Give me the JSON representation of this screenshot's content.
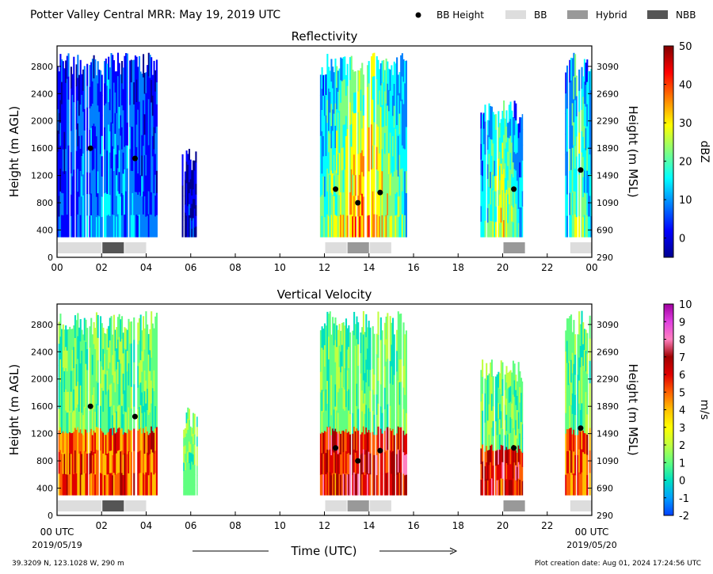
{
  "header": {
    "title": "Potter Valley Central MRR:  May 19, 2019 UTC",
    "legend": [
      {
        "label": "BB Height",
        "kind": "dot",
        "color": "#000000"
      },
      {
        "label": "BB",
        "kind": "box",
        "color": "#dddddd"
      },
      {
        "label": "Hybrid",
        "kind": "box",
        "color": "#999999"
      },
      {
        "label": "NBB",
        "kind": "box",
        "color": "#555555"
      }
    ]
  },
  "footer": {
    "location": "39.3209 N, 123.1028 W, 290 m",
    "creation": "Plot creation date: Aug 01, 2024 17:24:56 UTC",
    "xlabel": "Time (UTC)",
    "start_label": "00 UTC",
    "start_date": "2019/05/19",
    "end_label": "00 UTC",
    "end_date": "2019/05/20"
  },
  "chart_data": [
    {
      "type": "heatmap",
      "title": "Reflectivity",
      "ylabel": "Height (m AGL)",
      "ylabel_right": "Height (m MSL)",
      "colorbar_label": "dBZ",
      "colorbar_ticks": [
        "-5",
        "0",
        "10",
        "20",
        "30",
        "40",
        "50"
      ],
      "colorbar_range": [
        -5,
        50
      ],
      "colormap": [
        "#00008f",
        "#0000ff",
        "#0080ff",
        "#00ffff",
        "#80ff80",
        "#ffff00",
        "#ff8000",
        "#ff0000",
        "#800000"
      ],
      "x_ticks": [
        "00",
        "02",
        "04",
        "06",
        "08",
        "10",
        "12",
        "14",
        "16",
        "18",
        "20",
        "22",
        "00"
      ],
      "x_range_hours": [
        0,
        24
      ],
      "y_ticks": [
        0,
        400,
        800,
        1200,
        1600,
        2000,
        2400,
        2800
      ],
      "y_range": [
        0,
        3100
      ],
      "y_right_ticks": [
        290,
        690,
        1090,
        1490,
        1890,
        2290,
        2690,
        3090
      ],
      "bb_heights": [
        {
          "hour": 1.5,
          "height": 1600
        },
        {
          "hour": 3.5,
          "height": 1450
        },
        {
          "hour": 12.5,
          "height": 1000
        },
        {
          "hour": 13.5,
          "height": 800
        },
        {
          "hour": 14.5,
          "height": 950
        },
        {
          "hour": 20.5,
          "height": 1000
        },
        {
          "hour": 23.5,
          "height": 1280
        }
      ],
      "bb_types": [
        {
          "start": 0,
          "end": 2,
          "type": "BB"
        },
        {
          "start": 2,
          "end": 3,
          "type": "NBB"
        },
        {
          "start": 3,
          "end": 4,
          "type": "BB"
        },
        {
          "start": 12,
          "end": 13,
          "type": "BB"
        },
        {
          "start": 13,
          "end": 14,
          "type": "Hybrid"
        },
        {
          "start": 14,
          "end": 15,
          "type": "BB"
        },
        {
          "start": 20,
          "end": 21,
          "type": "Hybrid"
        },
        {
          "start": 23,
          "end": 24,
          "type": "BB"
        }
      ],
      "echo_periods": [
        {
          "start": 0.0,
          "end": 4.5,
          "top": 3000,
          "core": 12
        },
        {
          "start": 5.6,
          "end": 6.3,
          "top": 1600,
          "core": 3
        },
        {
          "start": 11.8,
          "end": 15.7,
          "top": 3000,
          "core": 33
        },
        {
          "start": 19.0,
          "end": 20.9,
          "top": 2300,
          "core": 26
        },
        {
          "start": 22.8,
          "end": 24.0,
          "top": 3000,
          "core": 24
        }
      ]
    },
    {
      "type": "heatmap",
      "title": "Vertical Velocity",
      "ylabel": "Height (m AGL)",
      "ylabel_right": "Height (m MSL)",
      "colorbar_label": "m/s",
      "colorbar_ticks": [
        "-2",
        "-1",
        "0",
        "1",
        "2",
        "3",
        "4",
        "5",
        "6",
        "7",
        "8",
        "9",
        "10"
      ],
      "colorbar_range": [
        -2,
        10
      ],
      "colormap": [
        "#0040ff",
        "#00a0ff",
        "#00e0c0",
        "#60ff80",
        "#c0ff40",
        "#ffff00",
        "#ffc000",
        "#ff6000",
        "#e00000",
        "#a00000",
        "#ff80c0",
        "#e040e0",
        "#a000a0"
      ],
      "x_ticks": [
        "",
        "02",
        "04",
        "06",
        "08",
        "10",
        "12",
        "14",
        "16",
        "18",
        "20",
        "22",
        ""
      ],
      "x_range_hours": [
        0,
        24
      ],
      "y_ticks": [
        0,
        400,
        800,
        1200,
        1600,
        2000,
        2400,
        2800
      ],
      "y_range": [
        0,
        3100
      ],
      "y_right_ticks": [
        290,
        690,
        1090,
        1490,
        1890,
        2290,
        2690,
        3090
      ],
      "bb_heights": [
        {
          "hour": 1.5,
          "height": 1600
        },
        {
          "hour": 3.5,
          "height": 1450
        },
        {
          "hour": 12.5,
          "height": 990
        },
        {
          "hour": 13.5,
          "height": 800
        },
        {
          "hour": 14.5,
          "height": 950
        },
        {
          "hour": 20.5,
          "height": 990
        },
        {
          "hour": 23.5,
          "height": 1280
        }
      ],
      "bb_types": [
        {
          "start": 0,
          "end": 2,
          "type": "BB"
        },
        {
          "start": 2,
          "end": 3,
          "type": "NBB"
        },
        {
          "start": 3,
          "end": 4,
          "type": "BB"
        },
        {
          "start": 12,
          "end": 13,
          "type": "BB"
        },
        {
          "start": 13,
          "end": 14,
          "type": "Hybrid"
        },
        {
          "start": 14,
          "end": 15,
          "type": "BB"
        },
        {
          "start": 20,
          "end": 21,
          "type": "Hybrid"
        },
        {
          "start": 23,
          "end": 24,
          "type": "BB"
        }
      ],
      "echo_periods": [
        {
          "start": 0.0,
          "end": 4.5,
          "top": 3000,
          "core": 6
        },
        {
          "start": 5.6,
          "end": 6.3,
          "top": 1600,
          "core": 1.5
        },
        {
          "start": 11.8,
          "end": 15.7,
          "top": 3000,
          "core": 7
        },
        {
          "start": 19.0,
          "end": 20.9,
          "top": 2300,
          "core": 7
        },
        {
          "start": 22.8,
          "end": 24.0,
          "top": 3000,
          "core": 6
        }
      ]
    }
  ]
}
